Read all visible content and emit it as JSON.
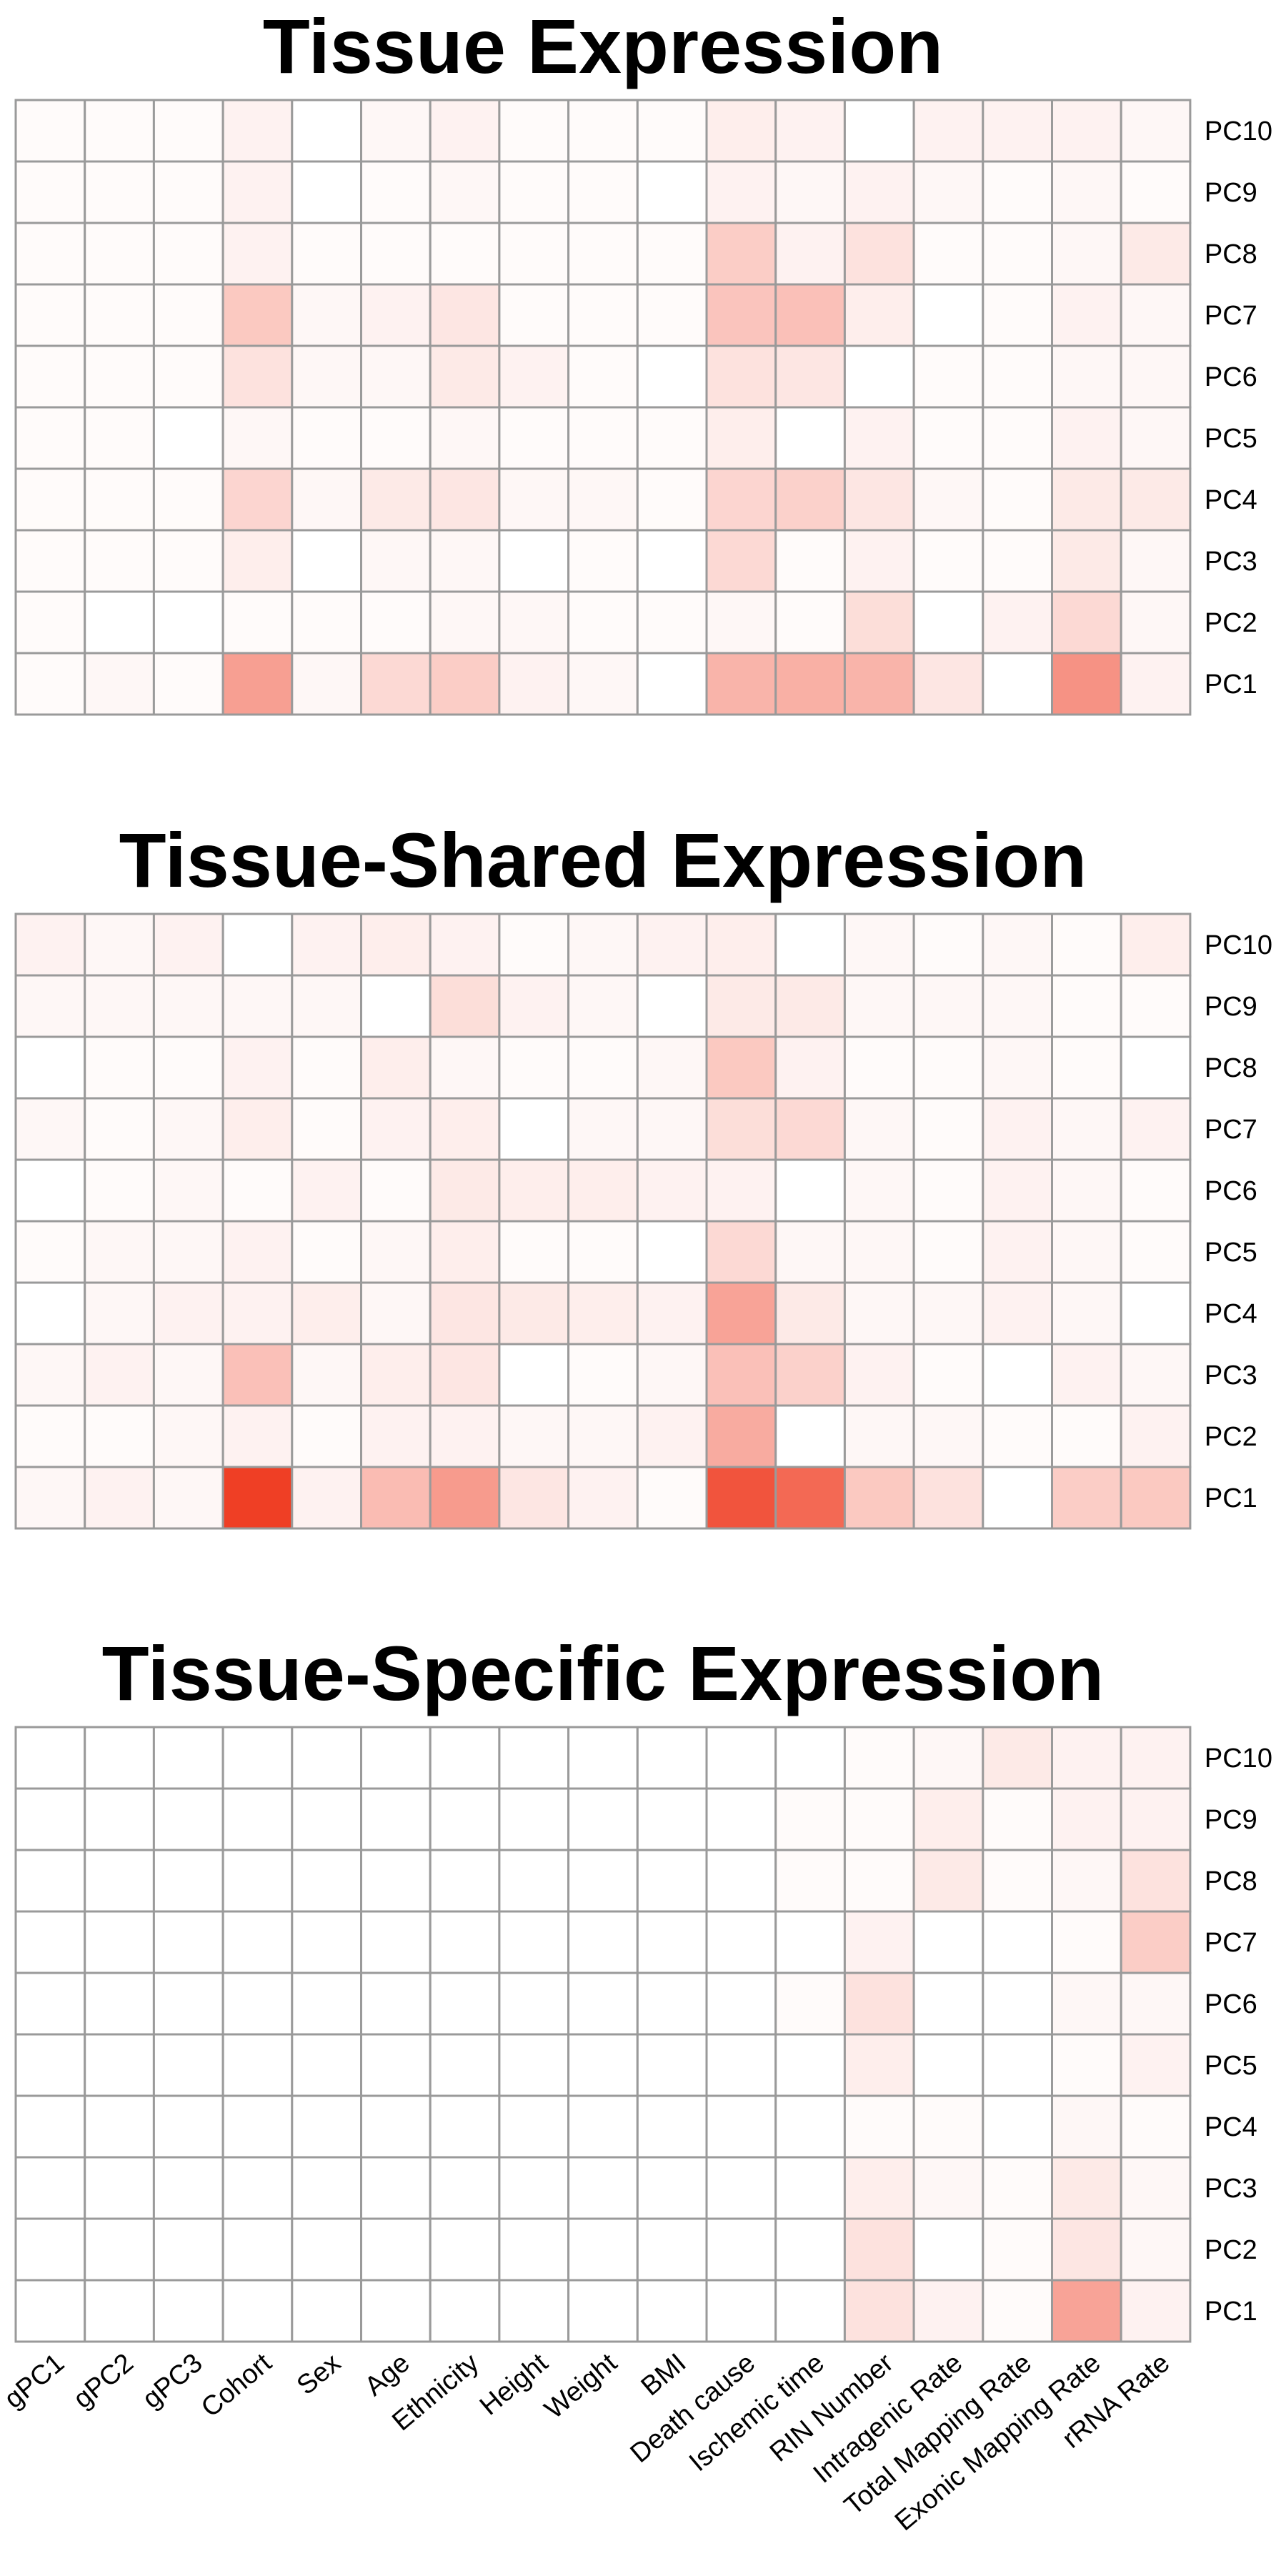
{
  "colors": {
    "low": "#ffffff",
    "high": "#ee2e12",
    "grid": "#9a9a9a"
  },
  "chart_data": {
    "type": "heatmap",
    "value_scale": [
      0,
      1
    ],
    "columns": [
      "gPC1",
      "gPC2",
      "gPC3",
      "Cohort",
      "Sex",
      "Age",
      "Ethnicity",
      "Height",
      "Weight",
      "BMI",
      "Death cause",
      "Ischemic time",
      "RIN Number",
      "Intragenic Rate",
      "Total Mapping Rate",
      "Exonic Mapping Rate",
      "rRNA Rate"
    ],
    "rows": [
      "PC10",
      "PC9",
      "PC8",
      "PC7",
      "PC6",
      "PC5",
      "PC4",
      "PC3",
      "PC2",
      "PC1"
    ],
    "panels": [
      {
        "title": "Tissue Expression",
        "values": [
          [
            0.02,
            0.02,
            0.02,
            0.06,
            0.0,
            0.04,
            0.06,
            0.02,
            0.02,
            0.02,
            0.08,
            0.06,
            0.0,
            0.06,
            0.06,
            0.06,
            0.04
          ],
          [
            0.02,
            0.02,
            0.02,
            0.06,
            0.0,
            0.02,
            0.04,
            0.02,
            0.02,
            0.0,
            0.06,
            0.04,
            0.06,
            0.04,
            0.02,
            0.04,
            0.02
          ],
          [
            0.02,
            0.02,
            0.02,
            0.06,
            0.02,
            0.02,
            0.02,
            0.02,
            0.02,
            0.02,
            0.24,
            0.06,
            0.14,
            0.02,
            0.02,
            0.04,
            0.1
          ],
          [
            0.02,
            0.02,
            0.02,
            0.26,
            0.04,
            0.06,
            0.12,
            0.02,
            0.02,
            0.02,
            0.28,
            0.3,
            0.08,
            0.0,
            0.02,
            0.06,
            0.04
          ],
          [
            0.02,
            0.02,
            0.02,
            0.14,
            0.04,
            0.04,
            0.1,
            0.06,
            0.02,
            0.0,
            0.14,
            0.12,
            0.0,
            0.02,
            0.02,
            0.04,
            0.04
          ],
          [
            0.02,
            0.02,
            0.0,
            0.04,
            0.02,
            0.02,
            0.04,
            0.02,
            0.02,
            0.02,
            0.08,
            0.0,
            0.06,
            0.02,
            0.02,
            0.06,
            0.04
          ],
          [
            0.02,
            0.02,
            0.02,
            0.2,
            0.04,
            0.1,
            0.12,
            0.04,
            0.04,
            0.02,
            0.2,
            0.22,
            0.12,
            0.04,
            0.02,
            0.1,
            0.1
          ],
          [
            0.02,
            0.02,
            0.02,
            0.08,
            0.0,
            0.04,
            0.04,
            0.0,
            0.02,
            0.0,
            0.18,
            0.02,
            0.06,
            0.02,
            0.02,
            0.1,
            0.04
          ],
          [
            0.02,
            0.0,
            0.0,
            0.02,
            0.02,
            0.02,
            0.04,
            0.04,
            0.02,
            0.02,
            0.04,
            0.02,
            0.16,
            0.0,
            0.06,
            0.18,
            0.04
          ],
          [
            0.02,
            0.04,
            0.02,
            0.46,
            0.04,
            0.18,
            0.24,
            0.06,
            0.04,
            0.0,
            0.36,
            0.38,
            0.36,
            0.12,
            0.0,
            0.52,
            0.06
          ]
        ]
      },
      {
        "title": "Tissue-Shared Expression",
        "values": [
          [
            0.06,
            0.04,
            0.06,
            0.0,
            0.06,
            0.08,
            0.06,
            0.02,
            0.04,
            0.06,
            0.08,
            0.0,
            0.04,
            0.02,
            0.04,
            0.02,
            0.08
          ],
          [
            0.04,
            0.04,
            0.04,
            0.04,
            0.04,
            0.0,
            0.16,
            0.06,
            0.04,
            0.0,
            0.1,
            0.1,
            0.04,
            0.04,
            0.04,
            0.02,
            0.02
          ],
          [
            0.0,
            0.02,
            0.02,
            0.06,
            0.02,
            0.08,
            0.04,
            0.02,
            0.02,
            0.04,
            0.26,
            0.06,
            0.02,
            0.02,
            0.04,
            0.02,
            0.0
          ],
          [
            0.04,
            0.02,
            0.04,
            0.08,
            0.02,
            0.06,
            0.08,
            0.0,
            0.04,
            0.04,
            0.16,
            0.18,
            0.04,
            0.02,
            0.06,
            0.04,
            0.06
          ],
          [
            0.0,
            0.02,
            0.04,
            0.02,
            0.06,
            0.02,
            0.1,
            0.08,
            0.08,
            0.06,
            0.06,
            0.0,
            0.04,
            0.02,
            0.06,
            0.04,
            0.02
          ],
          [
            0.02,
            0.04,
            0.04,
            0.06,
            0.02,
            0.04,
            0.08,
            0.02,
            0.02,
            0.0,
            0.18,
            0.04,
            0.04,
            0.02,
            0.06,
            0.04,
            0.02
          ],
          [
            0.0,
            0.04,
            0.06,
            0.06,
            0.08,
            0.04,
            0.12,
            0.1,
            0.08,
            0.06,
            0.44,
            0.1,
            0.04,
            0.04,
            0.06,
            0.04,
            0.0
          ],
          [
            0.04,
            0.06,
            0.04,
            0.3,
            0.04,
            0.08,
            0.12,
            0.0,
            0.02,
            0.04,
            0.3,
            0.22,
            0.06,
            0.02,
            0.0,
            0.06,
            0.04
          ],
          [
            0.02,
            0.02,
            0.04,
            0.06,
            0.02,
            0.06,
            0.06,
            0.04,
            0.04,
            0.06,
            0.4,
            0.0,
            0.04,
            0.04,
            0.02,
            0.02,
            0.06
          ],
          [
            0.04,
            0.06,
            0.04,
            0.92,
            0.06,
            0.32,
            0.48,
            0.12,
            0.06,
            0.02,
            0.82,
            0.72,
            0.26,
            0.14,
            0.0,
            0.24,
            0.26
          ]
        ]
      },
      {
        "title": "Tissue-Specific Expression",
        "values": [
          [
            0.0,
            0.0,
            0.0,
            0.0,
            0.0,
            0.0,
            0.0,
            0.0,
            0.0,
            0.0,
            0.0,
            0.0,
            0.02,
            0.04,
            0.1,
            0.06,
            0.06
          ],
          [
            0.0,
            0.0,
            0.0,
            0.0,
            0.0,
            0.0,
            0.0,
            0.0,
            0.0,
            0.0,
            0.0,
            0.02,
            0.02,
            0.08,
            0.02,
            0.06,
            0.06
          ],
          [
            0.0,
            0.0,
            0.0,
            0.0,
            0.0,
            0.0,
            0.0,
            0.0,
            0.0,
            0.0,
            0.0,
            0.02,
            0.02,
            0.1,
            0.02,
            0.04,
            0.14
          ],
          [
            0.0,
            0.0,
            0.0,
            0.0,
            0.0,
            0.0,
            0.0,
            0.0,
            0.0,
            0.0,
            0.0,
            0.0,
            0.06,
            0.0,
            0.0,
            0.02,
            0.24
          ],
          [
            0.0,
            0.0,
            0.0,
            0.0,
            0.0,
            0.0,
            0.0,
            0.0,
            0.0,
            0.0,
            0.0,
            0.02,
            0.14,
            0.0,
            0.0,
            0.04,
            0.04
          ],
          [
            0.0,
            0.0,
            0.0,
            0.0,
            0.0,
            0.0,
            0.0,
            0.0,
            0.0,
            0.0,
            0.0,
            0.0,
            0.08,
            0.0,
            0.0,
            0.02,
            0.06
          ],
          [
            0.0,
            0.0,
            0.0,
            0.0,
            0.0,
            0.0,
            0.0,
            0.0,
            0.0,
            0.0,
            0.0,
            0.0,
            0.02,
            0.02,
            0.0,
            0.04,
            0.02
          ],
          [
            0.0,
            0.0,
            0.0,
            0.0,
            0.0,
            0.0,
            0.0,
            0.0,
            0.0,
            0.0,
            0.0,
            0.0,
            0.08,
            0.04,
            0.02,
            0.1,
            0.04
          ],
          [
            0.0,
            0.0,
            0.0,
            0.0,
            0.0,
            0.0,
            0.0,
            0.0,
            0.0,
            0.0,
            0.0,
            0.0,
            0.14,
            0.0,
            0.02,
            0.12,
            0.04
          ],
          [
            0.0,
            0.0,
            0.0,
            0.0,
            0.0,
            0.0,
            0.0,
            0.0,
            0.0,
            0.0,
            0.0,
            0.0,
            0.14,
            0.06,
            0.02,
            0.44,
            0.06
          ]
        ]
      }
    ]
  }
}
